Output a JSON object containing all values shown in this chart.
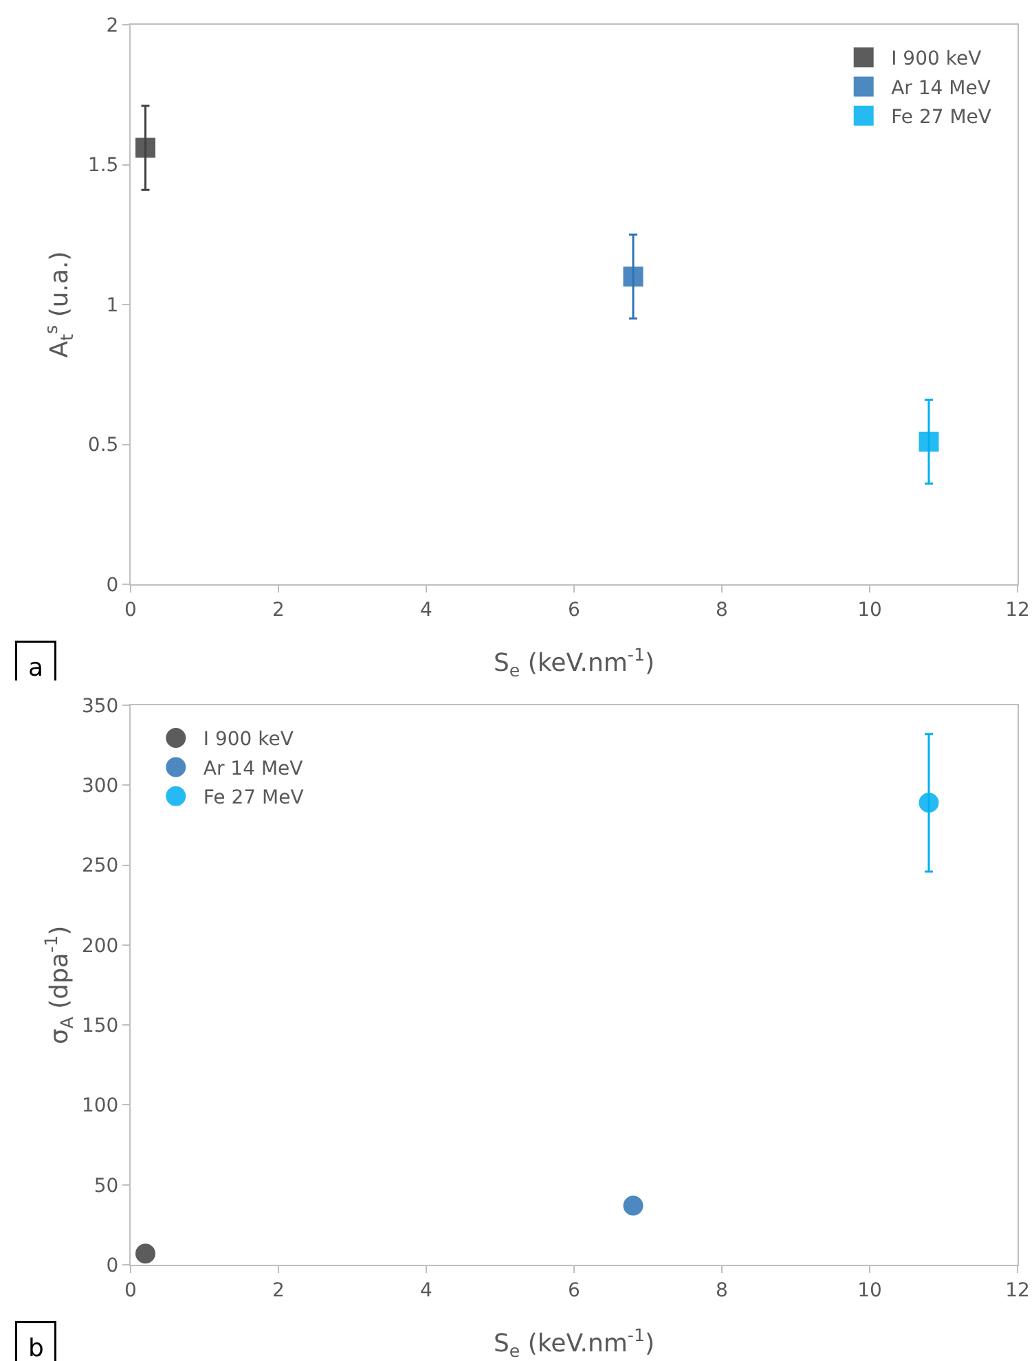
{
  "chart_data": [
    {
      "type": "scatter",
      "xlabel": "S$_{e}$ (keV.nm$^{-1}$)",
      "ylabel": "A$_{t}$$^{s}$ (u.a.)",
      "xlim": [
        0,
        12
      ],
      "xticks": [
        0,
        2,
        4,
        6,
        8,
        10,
        12
      ],
      "ylim": [
        0,
        2
      ],
      "yticks": [
        0,
        0.5,
        1,
        1.5,
        2
      ],
      "grid": false,
      "legend": "top right",
      "marker": "square",
      "annotations": [
        "a"
      ],
      "series": [
        {
          "name": "I 900 keV",
          "color": "#404040",
          "x": [
            0.2
          ],
          "values": [
            1.56
          ],
          "errors": [
            0.15
          ]
        },
        {
          "name": "Ar 14 MeV",
          "color": "#2e75b6",
          "x": [
            6.8
          ],
          "values": [
            1.1
          ],
          "errors": [
            0.15
          ]
        },
        {
          "name": "Fe 27 MeV",
          "color": "#00b0f0",
          "x": [
            10.8
          ],
          "values": [
            0.51
          ],
          "errors": [
            0.15
          ]
        }
      ]
    },
    {
      "type": "scatter",
      "xlabel": "S$_{e}$ (keV.nm$^{-1}$)",
      "ylabel": "σ$_{A}$ (dpa$^{-1}$)",
      "xlim": [
        0,
        12
      ],
      "xticks": [
        0,
        2,
        4,
        6,
        8,
        10,
        12
      ],
      "ylim": [
        0,
        350
      ],
      "yticks": [
        0,
        50,
        100,
        150,
        200,
        250,
        300,
        350
      ],
      "grid": false,
      "legend": "top left",
      "marker": "circle",
      "annotations": [
        "b"
      ],
      "series": [
        {
          "name": "I 900 keV",
          "color": "#404040",
          "x": [
            0.2
          ],
          "values": [
            7
          ],
          "errors": [
            null
          ]
        },
        {
          "name": "Ar 14 MeV",
          "color": "#2e75b6",
          "x": [
            6.8
          ],
          "values": [
            37
          ],
          "errors": [
            null
          ]
        },
        {
          "name": "Fe 27 MeV",
          "color": "#00b0f0",
          "x": [
            10.8
          ],
          "values": [
            289
          ],
          "errors": [
            43
          ]
        }
      ]
    }
  ]
}
